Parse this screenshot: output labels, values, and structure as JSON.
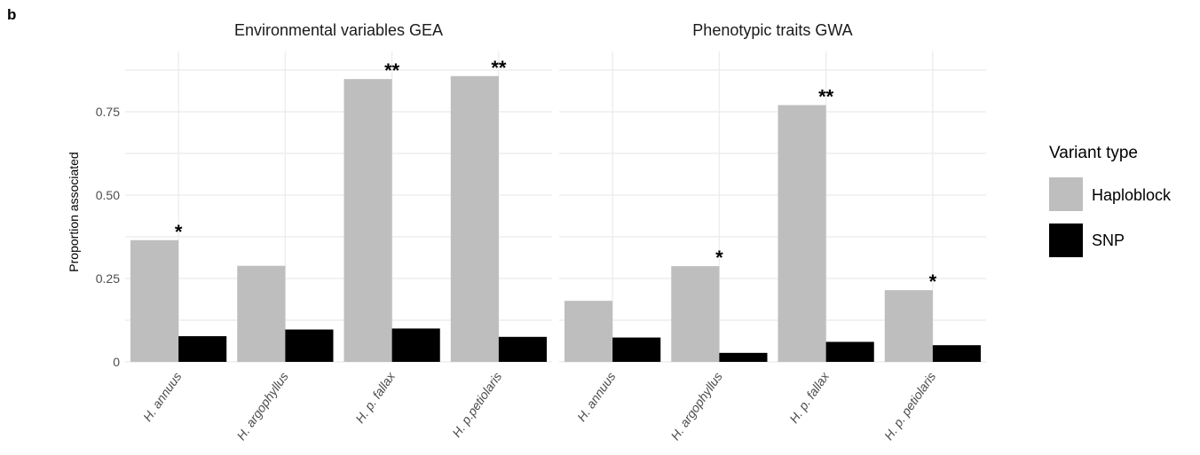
{
  "panel_label": "b",
  "chart_data": {
    "type": "bar",
    "ylabel": "Proportion associated",
    "xlabel": "",
    "ylim": [
      0,
      0.9
    ],
    "yticks": [
      0,
      0.25,
      0.5,
      0.75
    ],
    "ytick_labels": [
      "0",
      "0.25",
      "0.50",
      "0.75"
    ],
    "grid": true,
    "legend": {
      "title": "Variant type",
      "placement": "right",
      "entries": [
        {
          "name": "Haploblock",
          "color": "#bebebe"
        },
        {
          "name": "SNP",
          "color": "#000000"
        }
      ]
    },
    "facets": [
      {
        "title": "Environmental variables GEA",
        "categories": [
          "H. annuus",
          "H. argophyllus",
          "H. p. fallax",
          "H. p.petiolaris"
        ],
        "series": [
          {
            "name": "Haploblock",
            "values": [
              0.365,
              0.288,
              0.848,
              0.857
            ]
          },
          {
            "name": "SNP",
            "values": [
              0.077,
              0.097,
              0.1,
              0.075
            ]
          }
        ],
        "annotations": [
          "*",
          "",
          "**",
          "**"
        ]
      },
      {
        "title": "Phenotypic traits GWA",
        "categories": [
          "H. annuus",
          "H. argophyllus",
          "H. p. fallax",
          "H. p. petiolaris"
        ],
        "series": [
          {
            "name": "Haploblock",
            "values": [
              0.183,
              0.287,
              0.77,
              0.215
            ]
          },
          {
            "name": "SNP",
            "values": [
              0.073,
              0.027,
              0.06,
              0.05
            ]
          }
        ],
        "annotations": [
          "",
          "*",
          "**",
          "*"
        ]
      }
    ]
  }
}
